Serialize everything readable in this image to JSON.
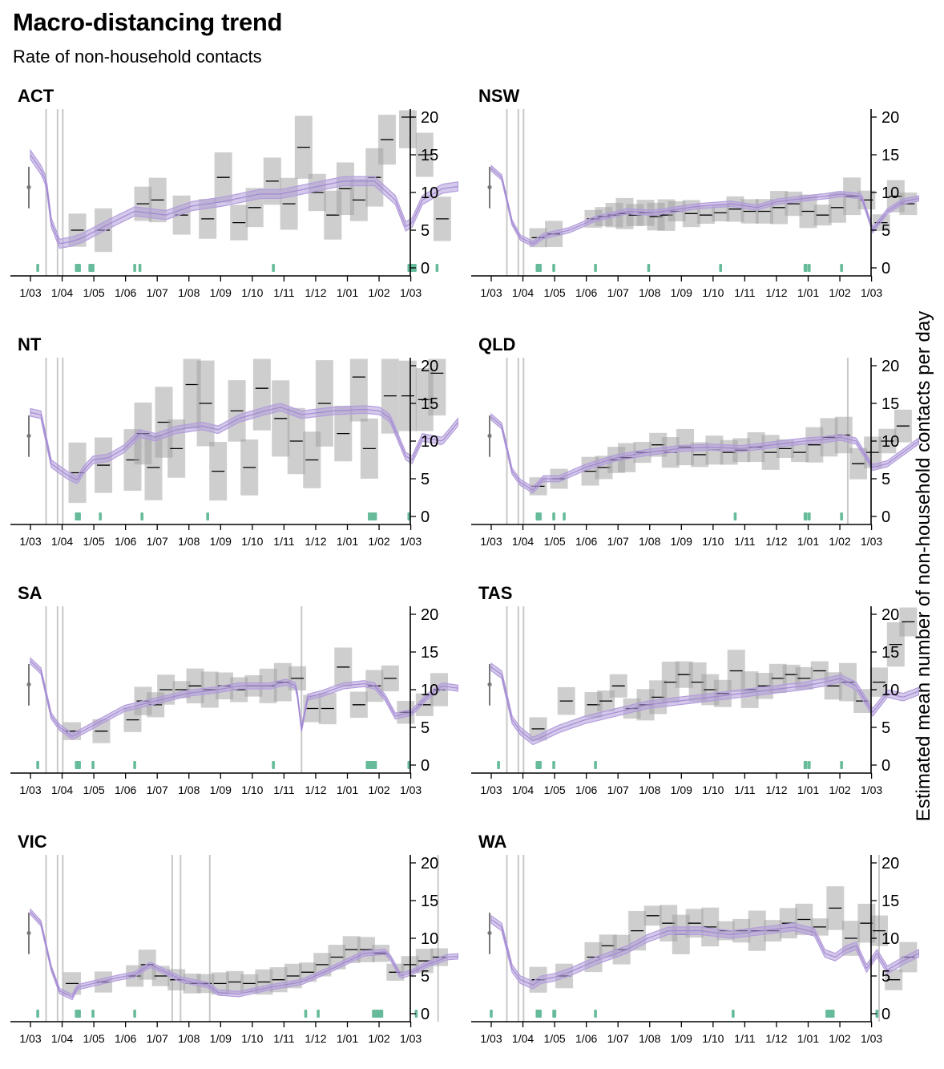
{
  "title": "Macro-distancing trend",
  "subtitle": "Rate of non-household contacts",
  "ylabel": "Estimated mean number of non-household contacts per day",
  "colors": {
    "trend": "#b39ddb",
    "survey_box": "#9e9e9e",
    "event_tick": "#66bb9a",
    "vline": "#c8c8c8",
    "axis": "#000000"
  },
  "chart_data": [
    {
      "type": "line",
      "state": "ACT",
      "ylim": [
        0,
        20
      ],
      "yticks": [
        0,
        5,
        10,
        15,
        20
      ],
      "xtick_labels": [
        "1/03",
        "1/04",
        "1/05",
        "1/06",
        "1/07",
        "1/08",
        "1/09",
        "1/10",
        "1/11",
        "1/12",
        "1/01",
        "1/02",
        "1/03"
      ],
      "pre_pandemic_estimate": {
        "mean": 10.7,
        "low": 7.9,
        "high": 13.4
      },
      "intervention_lines_day": [
        15,
        26,
        31
      ],
      "event_ticks_day": [
        7,
        44,
        45,
        46,
        47,
        57,
        58,
        60,
        100,
        105,
        233,
        363,
        364,
        366,
        368,
        369,
        390
      ],
      "trend_day": [
        0,
        10,
        15,
        20,
        28,
        40,
        50,
        75,
        100,
        130,
        155,
        185,
        220,
        240,
        265,
        300,
        330,
        350,
        360,
        366,
        376,
        395,
        410
      ],
      "trend_mean": [
        15.0,
        13.0,
        11.5,
        6.0,
        3.2,
        3.5,
        4.0,
        5.8,
        7.5,
        7.0,
        8.2,
        8.8,
        9.8,
        9.8,
        10.5,
        11.5,
        11.5,
        9.0,
        5.5,
        6.0,
        9.0,
        10.5,
        10.8
      ],
      "trend_halfwidth": 0.6,
      "surveys": {
        "day": [
          45,
          70,
          108,
          122,
          145,
          170,
          185,
          200,
          215,
          232,
          248,
          262,
          275,
          290,
          302,
          315,
          330,
          342,
          362,
          378,
          395
        ],
        "mean": [
          5,
          5,
          8.5,
          9,
          7,
          6.5,
          12,
          6,
          8,
          11.5,
          8.5,
          16,
          10,
          7,
          10.5,
          9,
          12,
          17,
          20,
          15,
          6.5
        ]
      }
    },
    {
      "type": "line",
      "state": "NSW",
      "ylim": [
        0,
        20
      ],
      "yticks": [
        0,
        5,
        10,
        15,
        20
      ],
      "xtick_labels": [
        "1/03",
        "1/04",
        "1/05",
        "1/06",
        "1/07",
        "1/08",
        "1/09",
        "1/10",
        "1/11",
        "1/12",
        "1/01",
        "1/02",
        "1/03"
      ],
      "pre_pandemic_estimate": {
        "mean": 10.7,
        "low": 7.9,
        "high": 13.4
      },
      "intervention_lines_day": [
        15,
        26,
        31
      ],
      "event_ticks_day": [
        44,
        45,
        46,
        47,
        60,
        100,
        151,
        220,
        301,
        302,
        305,
        336
      ],
      "trend_day": [
        0,
        10,
        20,
        28,
        40,
        50,
        75,
        100,
        130,
        155,
        180,
        200,
        230,
        255,
        275,
        300,
        320,
        335,
        355,
        366,
        380,
        395,
        410
      ],
      "trend_mean": [
        13.2,
        12.0,
        6.0,
        4.0,
        3.2,
        4.2,
        5.0,
        6.5,
        7.5,
        7.3,
        7.8,
        8.2,
        8.5,
        8.0,
        8.8,
        9.2,
        9.5,
        9.8,
        9.5,
        5.0,
        7.5,
        8.8,
        9.2
      ],
      "trend_halfwidth": 0.35,
      "surveys": {
        "day": [
          45,
          60,
          98,
          108,
          118,
          128,
          138,
          148,
          158,
          168,
          178,
          192,
          206,
          220,
          234,
          248,
          262,
          276,
          290,
          304,
          318,
          332,
          346,
          360,
          374,
          388,
          400
        ],
        "mean": [
          4,
          4.5,
          6.5,
          6.8,
          7,
          7.2,
          7,
          7.3,
          6.8,
          7,
          7.5,
          7.2,
          7,
          7.3,
          7.8,
          7.5,
          7.5,
          8,
          8.5,
          7.5,
          7,
          8,
          9.5,
          9,
          6,
          9.5,
          8.5
        ]
      }
    },
    {
      "type": "line",
      "state": "NT",
      "ylim": [
        0,
        20
      ],
      "yticks": [
        0,
        5,
        10,
        15,
        20
      ],
      "xtick_labels": [
        "1/03",
        "1/04",
        "1/05",
        "1/06",
        "1/07",
        "1/08",
        "1/09",
        "1/10",
        "1/11",
        "1/12",
        "1/01",
        "1/02",
        "1/03"
      ],
      "pre_pandemic_estimate": {
        "mean": 10.7,
        "low": 7.9,
        "high": 13.4
      },
      "intervention_lines_day": [
        15,
        26,
        31
      ],
      "event_ticks_day": [
        44,
        45,
        47,
        67,
        107,
        170,
        325,
        327,
        329,
        331,
        363
      ],
      "trend_day": [
        0,
        10,
        20,
        35,
        45,
        50,
        60,
        75,
        90,
        105,
        120,
        140,
        165,
        180,
        200,
        225,
        240,
        250,
        260,
        290,
        320,
        335,
        345,
        360,
        366,
        376,
        395,
        410
      ],
      "trend_mean": [
        13.8,
        13.5,
        7.0,
        5.5,
        4.8,
        6.0,
        7.5,
        7.8,
        9.0,
        11.0,
        10.5,
        11.5,
        12.0,
        11.5,
        13.0,
        14.0,
        14.5,
        14.0,
        13.5,
        14.0,
        14.2,
        14.0,
        13.0,
        8.0,
        7.5,
        10.5,
        10.0,
        12.5
      ],
      "trend_halfwidth": 0.5,
      "surveys": {
        "day": [
          45,
          70,
          98,
          108,
          118,
          128,
          140,
          155,
          168,
          180,
          198,
          210,
          222,
          240,
          255,
          270,
          282,
          300,
          315,
          325,
          345,
          362,
          378,
          390
        ],
        "mean": [
          5.8,
          6.8,
          7.5,
          11,
          6.5,
          12.5,
          9,
          17.5,
          15,
          6,
          14,
          6.5,
          17,
          13,
          10,
          7.5,
          15,
          11,
          18.5,
          9,
          16,
          16,
          15.5,
          19
        ]
      }
    },
    {
      "type": "line",
      "state": "QLD",
      "ylim": [
        0,
        20
      ],
      "yticks": [
        0,
        5,
        10,
        15,
        20
      ],
      "xtick_labels": [
        "1/03",
        "1/04",
        "1/05",
        "1/06",
        "1/07",
        "1/08",
        "1/09",
        "1/10",
        "1/11",
        "1/12",
        "1/01",
        "1/02",
        "1/03"
      ],
      "pre_pandemic_estimate": {
        "mean": 10.7,
        "low": 7.9,
        "high": 13.4
      },
      "intervention_lines_day": [
        15,
        26,
        31,
        342
      ],
      "event_ticks_day": [
        44,
        45,
        46,
        47,
        60,
        70,
        234,
        301,
        302,
        305,
        336
      ],
      "trend_day": [
        0,
        10,
        20,
        28,
        40,
        50,
        65,
        90,
        120,
        150,
        180,
        210,
        240,
        270,
        300,
        320,
        335,
        350,
        366,
        380,
        395,
        410
      ],
      "trend_mean": [
        13.2,
        12.0,
        6.0,
        4.5,
        3.5,
        5.0,
        5.0,
        6.5,
        7.8,
        8.5,
        9.0,
        9.2,
        9.0,
        9.5,
        10.0,
        10.2,
        10.5,
        10.0,
        6.5,
        7.0,
        8.5,
        10.0
      ],
      "trend_halfwidth": 0.4,
      "surveys": {
        "day": [
          45,
          65,
          95,
          108,
          120,
          130,
          145,
          160,
          172,
          186,
          200,
          214,
          228,
          240,
          254,
          268,
          282,
          296,
          310,
          324,
          338,
          352,
          366,
          380,
          395
        ],
        "mean": [
          4,
          5,
          6,
          6.5,
          7.5,
          7.8,
          8.5,
          9.5,
          8.5,
          9.2,
          8.2,
          8.8,
          8.5,
          8.8,
          9.2,
          8.5,
          9,
          8.5,
          9.5,
          10.5,
          10.8,
          7,
          8.5,
          10,
          12
        ]
      }
    },
    {
      "type": "line",
      "state": "SA",
      "ylim": [
        0,
        20
      ],
      "yticks": [
        0,
        5,
        10,
        15,
        20
      ],
      "xtick_labels": [
        "1/03",
        "1/04",
        "1/05",
        "1/06",
        "1/07",
        "1/08",
        "1/09",
        "1/10",
        "1/11",
        "1/12",
        "1/01",
        "1/02",
        "1/03"
      ],
      "pre_pandemic_estimate": {
        "mean": 10.7,
        "low": 7.9,
        "high": 13.4
      },
      "intervention_lines_day": [
        15,
        26,
        31,
        260
      ],
      "event_ticks_day": [
        7,
        44,
        45,
        46,
        47,
        60,
        100,
        233,
        323,
        325,
        327,
        329,
        331,
        363
      ],
      "trend_day": [
        0,
        10,
        20,
        28,
        40,
        50,
        70,
        90,
        120,
        150,
        180,
        200,
        230,
        245,
        255,
        260,
        266,
        280,
        300,
        320,
        330,
        340,
        350,
        366,
        380,
        395,
        410
      ],
      "trend_mean": [
        13.8,
        12.5,
        6.5,
        5.0,
        3.8,
        4.5,
        6.0,
        7.5,
        8.5,
        9.5,
        10.0,
        10.5,
        10.5,
        11.0,
        10.5,
        4.8,
        9.0,
        9.5,
        10.5,
        10.8,
        10.5,
        9.0,
        6.5,
        7.0,
        9.0,
        10.5,
        10.2
      ],
      "trend_halfwidth": 0.4,
      "surveys": {
        "day": [
          40,
          68,
          98,
          108,
          120,
          130,
          145,
          158,
          172,
          186,
          200,
          214,
          228,
          242,
          256,
          270,
          285,
          300,
          315,
          330,
          345,
          360,
          378,
          392
        ],
        "mean": [
          4.5,
          4.5,
          6,
          8.5,
          8,
          10,
          10,
          10.5,
          10,
          10.5,
          10,
          10.5,
          10.5,
          11,
          11.5,
          7.5,
          7.5,
          13,
          8,
          10.5,
          11.5,
          7,
          8,
          10
        ]
      }
    },
    {
      "type": "line",
      "state": "TAS",
      "ylim": [
        0,
        20
      ],
      "yticks": [
        0,
        5,
        10,
        15,
        20
      ],
      "xtick_labels": [
        "1/03",
        "1/04",
        "1/05",
        "1/06",
        "1/07",
        "1/08",
        "1/09",
        "1/10",
        "1/11",
        "1/12",
        "1/01",
        "1/02",
        "1/03"
      ],
      "pre_pandemic_estimate": {
        "mean": 10.7,
        "low": 7.9,
        "high": 13.4
      },
      "intervention_lines_day": [
        15,
        26,
        31
      ],
      "event_ticks_day": [
        7,
        44,
        45,
        46,
        47,
        60,
        100,
        301,
        302,
        305,
        336
      ],
      "trend_day": [
        0,
        10,
        20,
        28,
        40,
        50,
        65,
        90,
        120,
        150,
        180,
        210,
        240,
        270,
        300,
        320,
        335,
        350,
        366,
        380,
        395,
        410
      ],
      "trend_mean": [
        13.0,
        12.0,
        6.0,
        4.5,
        3.2,
        3.8,
        4.8,
        6.0,
        7.0,
        8.0,
        8.5,
        9.0,
        9.5,
        10.0,
        10.5,
        11.0,
        11.5,
        10.5,
        7.0,
        9.5,
        9.0,
        9.8
      ],
      "trend_halfwidth": 0.5,
      "surveys": {
        "day": [
          45,
          72,
          98,
          110,
          122,
          135,
          148,
          160,
          172,
          185,
          198,
          210,
          222,
          235,
          248,
          262,
          275,
          288,
          300,
          315,
          328,
          342,
          356,
          372,
          388,
          400
        ],
        "mean": [
          4.8,
          8.5,
          8,
          8.5,
          10.5,
          7.5,
          8,
          9,
          11,
          12,
          11,
          10,
          9.5,
          12.5,
          10,
          10.5,
          11.5,
          12,
          11.5,
          12.5,
          10.5,
          11,
          8.5,
          11,
          16,
          19
        ]
      }
    },
    {
      "type": "line",
      "state": "VIC",
      "ylim": [
        0,
        20
      ],
      "yticks": [
        0,
        5,
        10,
        15,
        20
      ],
      "xtick_labels": [
        "1/03",
        "1/04",
        "1/05",
        "1/06",
        "1/07",
        "1/08",
        "1/09",
        "1/10",
        "1/11",
        "1/12",
        "1/01",
        "1/02",
        "1/03"
      ],
      "pre_pandemic_estimate": {
        "mean": 10.7,
        "low": 7.9,
        "high": 13.4
      },
      "intervention_lines_day": [
        15,
        26,
        31,
        136,
        144,
        172,
        391
      ],
      "event_ticks_day": [
        7,
        44,
        45,
        46,
        47,
        60,
        100,
        264,
        276,
        329,
        331,
        333,
        335,
        337,
        370
      ],
      "trend_day": [
        0,
        10,
        20,
        28,
        40,
        45,
        60,
        85,
        100,
        115,
        130,
        145,
        170,
        180,
        200,
        230,
        260,
        290,
        320,
        340,
        345,
        355,
        366,
        380,
        400,
        410
      ],
      "trend_mean": [
        13.5,
        12.0,
        6.0,
        3.0,
        2.2,
        3.5,
        4.0,
        4.8,
        5.2,
        6.5,
        5.5,
        4.5,
        3.8,
        2.8,
        2.6,
        3.5,
        4.2,
        6.0,
        8.0,
        8.2,
        7.5,
        5.0,
        5.5,
        6.5,
        7.5,
        7.6
      ],
      "trend_halfwidth": 0.35,
      "surveys": {
        "day": [
          40,
          70,
          100,
          112,
          125,
          140,
          155,
          168,
          182,
          196,
          210,
          224,
          238,
          252,
          266,
          280,
          294,
          308,
          322,
          336,
          350,
          364,
          378,
          392
        ],
        "mean": [
          4,
          4.2,
          5,
          6.5,
          5,
          4.5,
          4,
          4,
          4,
          4.2,
          4,
          4.2,
          4.5,
          5,
          5.5,
          6.5,
          7.5,
          8.5,
          8.5,
          8,
          5.5,
          6.5,
          7,
          7.5
        ]
      }
    },
    {
      "type": "line",
      "state": "WA",
      "ylim": [
        0,
        20
      ],
      "yticks": [
        0,
        5,
        10,
        15,
        20
      ],
      "xtick_labels": [
        "1/03",
        "1/04",
        "1/05",
        "1/06",
        "1/07",
        "1/08",
        "1/09",
        "1/10",
        "1/11",
        "1/12",
        "1/01",
        "1/02",
        "1/03"
      ],
      "pre_pandemic_estimate": {
        "mean": 10.7,
        "low": 7.9,
        "high": 13.4
      },
      "intervention_lines_day": [
        15,
        26,
        31,
        372
      ],
      "event_ticks_day": [
        0,
        44,
        45,
        46,
        47,
        60,
        61,
        100,
        232,
        322,
        324,
        326,
        328,
        370
      ],
      "trend_day": [
        0,
        10,
        20,
        28,
        40,
        48,
        60,
        75,
        100,
        130,
        150,
        170,
        200,
        230,
        260,
        290,
        310,
        320,
        330,
        340,
        350,
        360,
        370,
        380,
        395,
        410
      ],
      "trend_mean": [
        12.5,
        11.5,
        6.0,
        4.5,
        3.8,
        4.5,
        4.8,
        5.5,
        7.0,
        8.5,
        10.0,
        11.0,
        11.0,
        10.5,
        11.0,
        11.5,
        10.8,
        8.0,
        7.5,
        8.5,
        9.0,
        6.0,
        8.0,
        5.8,
        7.0,
        8.0
      ],
      "trend_halfwidth": 0.5,
      "surveys": {
        "day": [
          45,
          70,
          98,
          112,
          125,
          140,
          155,
          170,
          182,
          195,
          210,
          225,
          240,
          255,
          270,
          285,
          300,
          315,
          330,
          345,
          360,
          372,
          386,
          400
        ],
        "mean": [
          4.5,
          5,
          7.5,
          9,
          8.5,
          11,
          13,
          12,
          10.5,
          12,
          11.5,
          11,
          11,
          11,
          11,
          12,
          12.5,
          11.5,
          14,
          10,
          12,
          11,
          4.5,
          7.5
        ]
      }
    }
  ]
}
